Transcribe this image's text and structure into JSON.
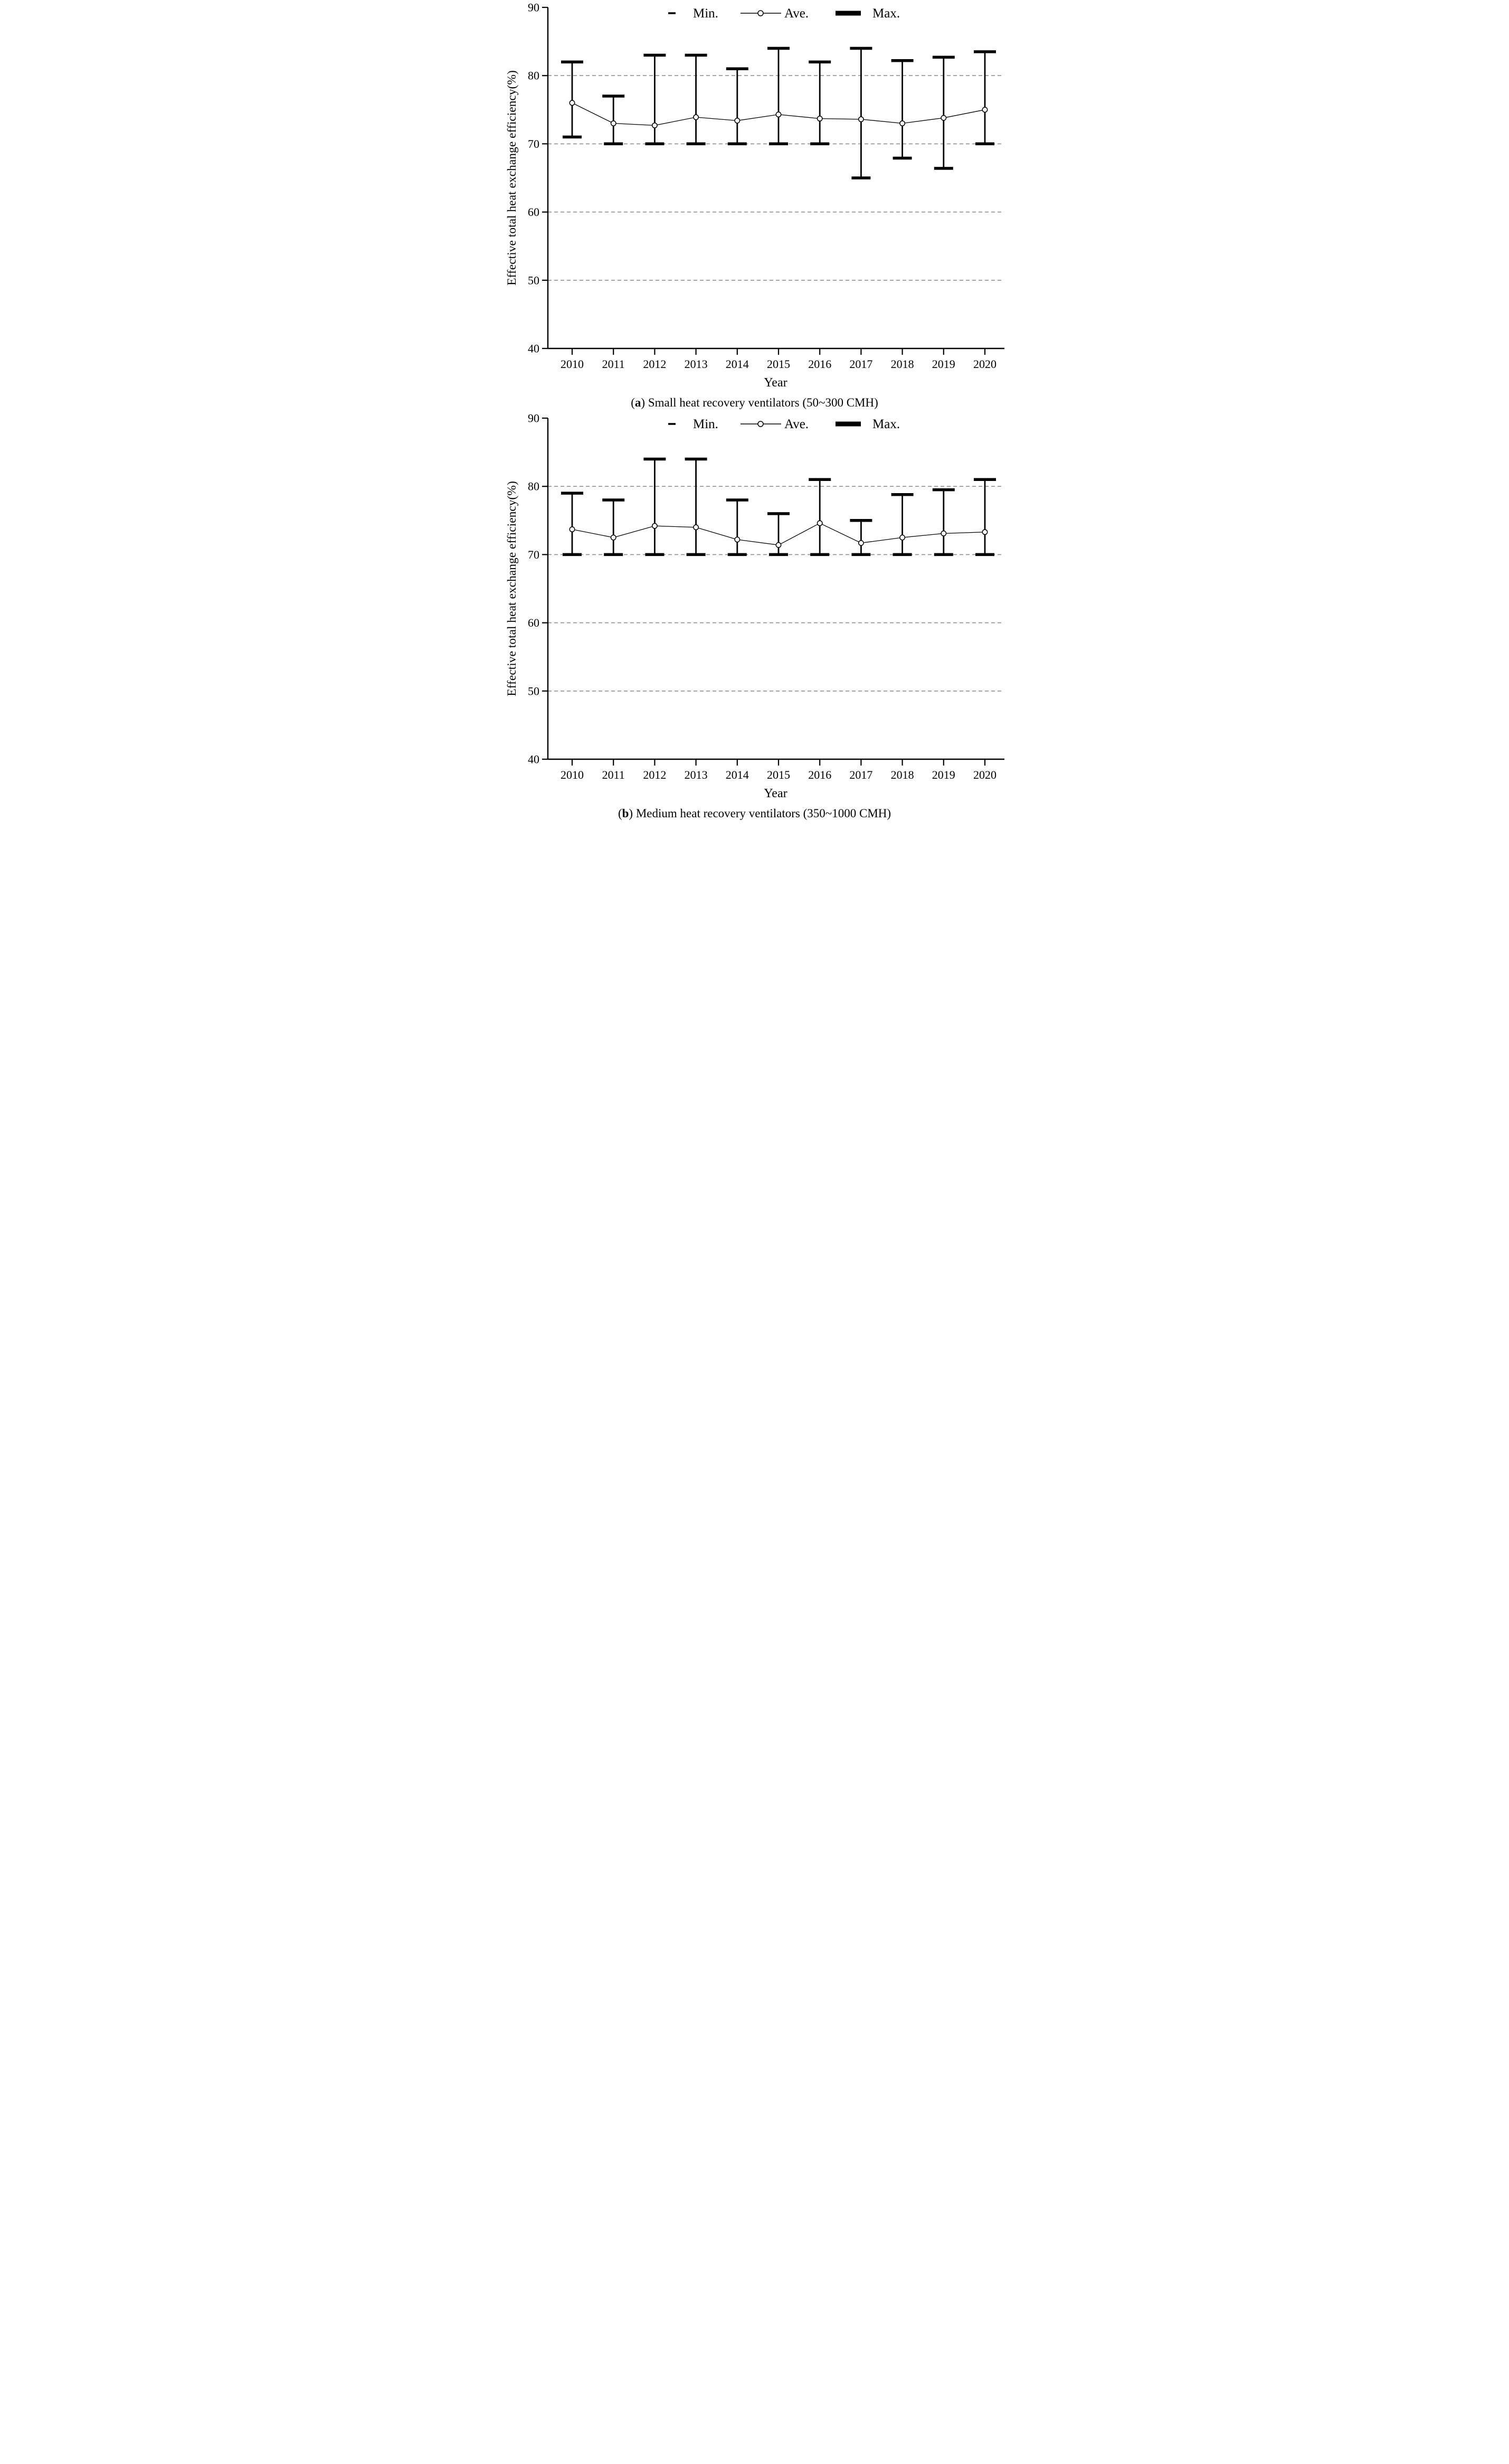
{
  "figure": {
    "background": "#ffffff"
  },
  "colors": {
    "series": "#000000",
    "grid": "#909090",
    "marker_fill": "#ffffff"
  },
  "captions": {
    "a": {
      "prefix": "(",
      "letter": "a",
      "suffix": ")",
      "text": "Small heat recovery ventilators (50~300 CMH)"
    },
    "b": {
      "prefix": "(",
      "letter": "b",
      "suffix": ")",
      "text": "Medium heat recovery ventilators (350~1000 CMH)"
    }
  },
  "chart_data": [
    {
      "type": "line",
      "subtype": "line-with-error-bars",
      "title": "(a) Small heat recovery ventilators (50~300 CMH)",
      "xlabel": "Year",
      "ylabel": "Effective total heat exchange efficiency(%)",
      "ylim": [
        40,
        90
      ],
      "yticks": [
        90,
        80,
        70,
        60,
        50,
        40
      ],
      "gridlines_at": [
        80,
        70,
        60,
        50
      ],
      "grid": "horizontal-dashed",
      "legend_position": "top-center",
      "legend": [
        "Min.",
        "Ave.",
        "Max."
      ],
      "categories": [
        "2010",
        "2011",
        "2012",
        "2013",
        "2014",
        "2015",
        "2016",
        "2017",
        "2018",
        "2019",
        "2020"
      ],
      "series": [
        {
          "name": "Min.",
          "role": "error-low",
          "values": [
            71,
            70,
            70,
            70,
            70,
            70,
            70,
            65,
            67.9,
            66.4,
            70
          ]
        },
        {
          "name": "Ave.",
          "role": "line-open-circle",
          "values": [
            76,
            73,
            72.7,
            73.9,
            73.4,
            74.3,
            73.7,
            73.6,
            73,
            73.8,
            75
          ]
        },
        {
          "name": "Max.",
          "role": "error-high",
          "values": [
            82,
            77,
            83,
            83,
            81,
            84,
            82,
            84,
            82.2,
            82.7,
            83.5
          ]
        }
      ]
    },
    {
      "type": "line",
      "subtype": "line-with-error-bars",
      "title": "(b) Medium heat recovery ventilators (350~1000 CMH)",
      "xlabel": "Year",
      "ylabel": "Effective total heat exchange efficiency(%)",
      "ylim": [
        40,
        90
      ],
      "yticks": [
        90,
        80,
        70,
        60,
        50,
        40
      ],
      "gridlines_at": [
        80,
        70,
        60,
        50
      ],
      "grid": "horizontal-dashed",
      "legend_position": "top-center",
      "legend": [
        "Min.",
        "Ave.",
        "Max."
      ],
      "categories": [
        "2010",
        "2011",
        "2012",
        "2013",
        "2014",
        "2015",
        "2016",
        "2017",
        "2018",
        "2019",
        "2020"
      ],
      "series": [
        {
          "name": "Min.",
          "role": "error-low",
          "values": [
            70,
            70,
            70,
            70,
            70,
            70,
            70,
            70,
            70,
            70,
            70
          ]
        },
        {
          "name": "Ave.",
          "role": "line-open-circle",
          "values": [
            73.7,
            72.5,
            74.2,
            74,
            72.2,
            71.4,
            74.6,
            71.7,
            72.5,
            73.1,
            73.3
          ]
        },
        {
          "name": "Max.",
          "role": "error-high",
          "values": [
            79,
            78,
            84,
            84,
            78,
            76,
            81,
            75,
            78.8,
            79.5,
            81
          ]
        }
      ]
    }
  ]
}
